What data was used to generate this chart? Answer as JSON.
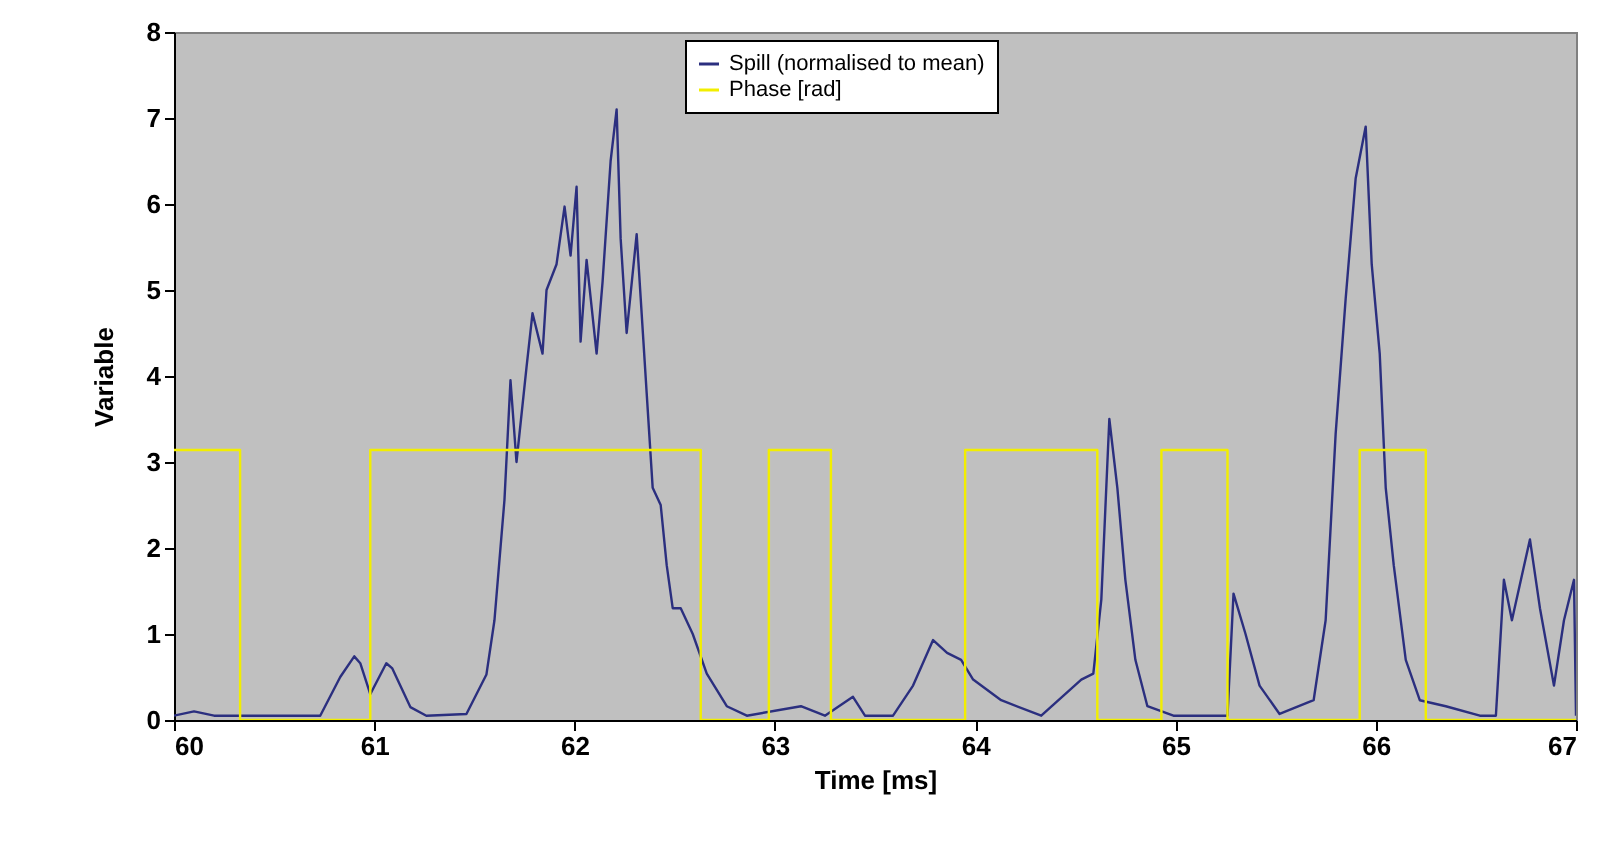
{
  "chart_data": {
    "type": "line",
    "xlabel": "Time [ms]",
    "ylabel": "Variable",
    "xlim": [
      60,
      67
    ],
    "ylim": [
      0,
      8
    ],
    "xticks": [
      60,
      61,
      62,
      63,
      64,
      65,
      66,
      67
    ],
    "yticks": [
      0,
      1,
      2,
      3,
      4,
      5,
      6,
      7,
      8
    ],
    "grid": false,
    "legend": "top",
    "series": [
      {
        "name": "Spill (normalised to mean)",
        "color": "#2b2f7f",
        "x": [
          60.0,
          60.1,
          60.2,
          60.3,
          60.4,
          60.5,
          60.6,
          60.73,
          60.83,
          60.9,
          60.93,
          60.98,
          61.06,
          61.09,
          61.18,
          61.26,
          61.46,
          61.56,
          61.6,
          61.65,
          61.68,
          61.71,
          61.76,
          61.79,
          61.84,
          61.86,
          61.91,
          61.95,
          61.98,
          62.01,
          62.03,
          62.06,
          62.11,
          62.14,
          62.18,
          62.21,
          62.23,
          62.26,
          62.31,
          62.36,
          62.39,
          62.43,
          62.46,
          62.49,
          62.53,
          62.59,
          62.66,
          62.76,
          62.86,
          63.13,
          63.25,
          63.39,
          63.45,
          63.59,
          63.69,
          63.79,
          63.86,
          63.93,
          63.99,
          64.13,
          64.33,
          64.53,
          64.59,
          64.63,
          64.67,
          64.71,
          64.75,
          64.8,
          64.86,
          64.99,
          65.26,
          65.29,
          65.35,
          65.42,
          65.52,
          65.69,
          65.75,
          65.8,
          65.85,
          65.9,
          65.95,
          65.98,
          66.02,
          66.05,
          66.09,
          66.15,
          66.22,
          66.35,
          66.52,
          66.6,
          66.64,
          66.68,
          66.77,
          66.82,
          66.89,
          66.94,
          66.99,
          67.0
        ],
        "values": [
          0.05,
          0.1,
          0.05,
          0.05,
          0.05,
          0.05,
          0.05,
          0.05,
          0.5,
          0.74,
          0.66,
          0.3,
          0.66,
          0.6,
          0.15,
          0.05,
          0.07,
          0.53,
          1.16,
          2.56,
          3.95,
          3.0,
          4.1,
          4.73,
          4.26,
          5.0,
          5.3,
          5.97,
          5.4,
          6.2,
          4.4,
          5.35,
          4.26,
          5.1,
          6.5,
          7.1,
          5.6,
          4.5,
          5.65,
          3.8,
          2.7,
          2.5,
          1.8,
          1.3,
          1.3,
          1.0,
          0.54,
          0.16,
          0.05,
          0.16,
          0.05,
          0.27,
          0.05,
          0.05,
          0.4,
          0.93,
          0.78,
          0.7,
          0.47,
          0.23,
          0.05,
          0.47,
          0.54,
          1.4,
          3.5,
          2.7,
          1.63,
          0.7,
          0.16,
          0.05,
          0.05,
          1.47,
          1.0,
          0.4,
          0.07,
          0.23,
          1.16,
          3.33,
          4.9,
          6.3,
          6.9,
          5.3,
          4.26,
          2.7,
          1.8,
          0.7,
          0.23,
          0.16,
          0.05,
          0.05,
          1.63,
          1.16,
          2.1,
          1.3,
          0.4,
          1.16,
          1.63,
          0.05
        ]
      },
      {
        "name": "Phase [rad]",
        "color": "#f2ee00",
        "type": "step",
        "x": [
          60.0,
          60.33,
          60.98,
          62.63,
          62.97,
          63.28,
          63.95,
          64.61,
          64.93,
          65.26,
          65.92,
          66.25,
          67.0
        ],
        "values": [
          3.14,
          0,
          3.14,
          0,
          3.14,
          0,
          3.14,
          0,
          3.14,
          0,
          3.14,
          0,
          0
        ]
      }
    ]
  }
}
